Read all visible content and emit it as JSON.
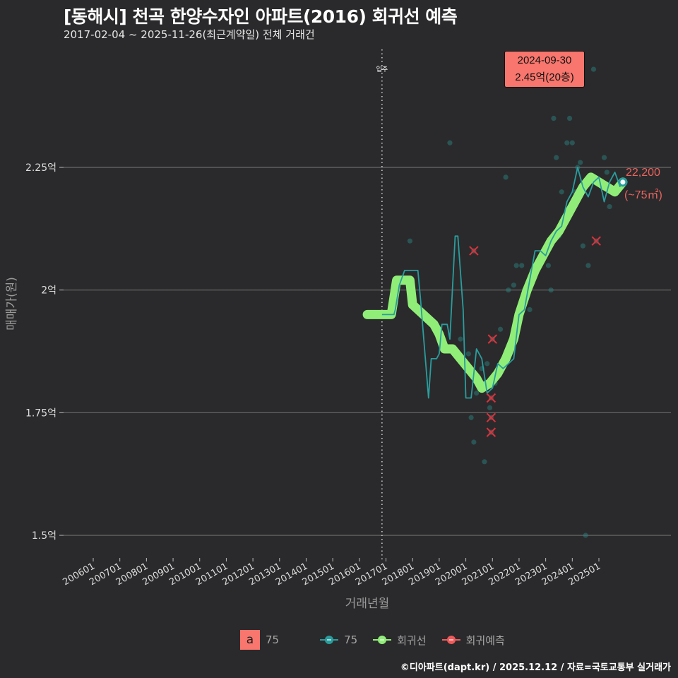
{
  "header": {
    "title": "[동해시] 천곡 한양수자인 아파트(2016) 회귀선 예측",
    "subtitle": "2017-02-04 ~ 2025-11-26(최근계약일) 전체 거래건"
  },
  "callout": {
    "date": "2024-09-30",
    "price": "2.45억(20층)"
  },
  "end_label": {
    "value": "22,200",
    "area": "(~75㎡)"
  },
  "movein_label": "입주",
  "legend": {
    "key_letter": "a",
    "key_label": "75",
    "items": [
      {
        "label": "75",
        "color": "#2a9d9d"
      },
      {
        "label": "회귀선",
        "color": "#90ee78"
      },
      {
        "label": "회귀예측",
        "color": "#f05a5a"
      }
    ]
  },
  "footer": "©디아파트(dapt.kr) / 2025.12.12 / 자료=국토교통부 실거래가",
  "colors": {
    "background": "#2a2a2c",
    "grid": "#6a6a6a",
    "series_75": "#2a9d9d",
    "regression": "#90ee78",
    "prediction": "#e0303a",
    "callout": "#f8766d"
  },
  "chart_data": {
    "type": "line",
    "title": "[동해시] 천곡 한양수자인 아파트(2016) 회귀선 예측",
    "subtitle": "2017-02-04 ~ 2025-11-26(최근계약일) 전체 거래건",
    "xlabel": "거래년월",
    "ylabel": "매매가(원)",
    "y_ticks": [
      {
        "v": 2.25,
        "label": "2.25억"
      },
      {
        "v": 2.0,
        "label": "2억"
      },
      {
        "v": 1.75,
        "label": "1.75억"
      },
      {
        "v": 1.5,
        "label": "1.5억"
      }
    ],
    "x_ticks": [
      "200601",
      "200701",
      "200801",
      "200901",
      "201001",
      "201101",
      "201201",
      "201301",
      "201401",
      "201501",
      "201601",
      "201701",
      "201801",
      "201901",
      "202001",
      "202101",
      "202201",
      "202301",
      "202401",
      "202501"
    ],
    "ylim": [
      1.46,
      2.71
    ],
    "xlim": [
      2005.3,
      2027.0
    ],
    "grid": true,
    "legend_position": "bottom",
    "movein_year": 2016.85,
    "series": [
      {
        "name": "75 (월별 평균)",
        "kind": "line",
        "points": [
          [
            2016.85,
            1.95
          ],
          [
            2017.3,
            1.95
          ],
          [
            2017.35,
            1.96
          ],
          [
            2017.5,
            2.01
          ],
          [
            2017.7,
            2.04
          ],
          [
            2018.2,
            2.04
          ],
          [
            2018.3,
            1.98
          ],
          [
            2018.6,
            1.78
          ],
          [
            2018.7,
            1.86
          ],
          [
            2018.9,
            1.86
          ],
          [
            2019.0,
            1.87
          ],
          [
            2019.1,
            1.93
          ],
          [
            2019.3,
            1.93
          ],
          [
            2019.4,
            1.9
          ],
          [
            2019.6,
            2.11
          ],
          [
            2019.7,
            2.11
          ],
          [
            2019.9,
            1.96
          ],
          [
            2020.0,
            1.78
          ],
          [
            2020.2,
            1.78
          ],
          [
            2020.4,
            1.88
          ],
          [
            2020.6,
            1.86
          ],
          [
            2020.8,
            1.79
          ],
          [
            2021.0,
            1.8
          ],
          [
            2021.2,
            1.85
          ],
          [
            2021.4,
            1.84
          ],
          [
            2021.6,
            1.85
          ],
          [
            2021.8,
            1.86
          ],
          [
            2022.0,
            1.95
          ],
          [
            2022.2,
            1.96
          ],
          [
            2022.4,
            2.02
          ],
          [
            2022.6,
            2.08
          ],
          [
            2022.8,
            2.08
          ],
          [
            2023.0,
            2.07
          ],
          [
            2023.2,
            2.1
          ],
          [
            2023.4,
            2.12
          ],
          [
            2023.6,
            2.13
          ],
          [
            2023.8,
            2.18
          ],
          [
            2024.0,
            2.2
          ],
          [
            2024.2,
            2.25
          ],
          [
            2024.4,
            2.21
          ],
          [
            2024.6,
            2.19
          ],
          [
            2024.8,
            2.22
          ],
          [
            2025.0,
            2.23
          ],
          [
            2025.2,
            2.18
          ],
          [
            2025.4,
            2.22
          ],
          [
            2025.6,
            2.24
          ],
          [
            2025.8,
            2.21
          ]
        ]
      },
      {
        "name": "회귀선",
        "kind": "line",
        "points": [
          [
            2016.3,
            1.95
          ],
          [
            2017.2,
            1.95
          ],
          [
            2017.4,
            2.02
          ],
          [
            2017.9,
            2.02
          ],
          [
            2018.0,
            1.97
          ],
          [
            2018.4,
            1.95
          ],
          [
            2018.8,
            1.93
          ],
          [
            2019.0,
            1.91
          ],
          [
            2019.2,
            1.88
          ],
          [
            2019.5,
            1.88
          ],
          [
            2019.8,
            1.86
          ],
          [
            2020.1,
            1.84
          ],
          [
            2020.4,
            1.82
          ],
          [
            2020.6,
            1.8
          ],
          [
            2020.9,
            1.81
          ],
          [
            2021.2,
            1.83
          ],
          [
            2021.5,
            1.86
          ],
          [
            2021.8,
            1.9
          ],
          [
            2022.0,
            1.95
          ],
          [
            2022.3,
            2.0
          ],
          [
            2022.6,
            2.04
          ],
          [
            2022.9,
            2.07
          ],
          [
            2023.2,
            2.1
          ],
          [
            2023.5,
            2.12
          ],
          [
            2023.8,
            2.15
          ],
          [
            2024.1,
            2.18
          ],
          [
            2024.4,
            2.21
          ],
          [
            2024.7,
            2.23
          ],
          [
            2025.0,
            2.22
          ],
          [
            2025.3,
            2.21
          ],
          [
            2025.6,
            2.2
          ],
          [
            2025.9,
            2.22
          ]
        ]
      },
      {
        "name": "회귀예측",
        "kind": "scatter-x",
        "points": [
          [
            2020.3,
            2.08
          ],
          [
            2021.0,
            1.9
          ],
          [
            2020.95,
            1.78
          ],
          [
            2020.95,
            1.74
          ],
          [
            2020.95,
            1.71
          ],
          [
            2024.9,
            2.1
          ]
        ]
      },
      {
        "name": "75 (개별 거래)",
        "kind": "scatter",
        "points": [
          [
            2017.9,
            2.1
          ],
          [
            2019.4,
            2.3
          ],
          [
            2019.8,
            1.9
          ],
          [
            2020.1,
            1.87
          ],
          [
            2020.2,
            1.74
          ],
          [
            2020.3,
            1.69
          ],
          [
            2020.4,
            1.79
          ],
          [
            2020.6,
            1.84
          ],
          [
            2020.7,
            1.65
          ],
          [
            2020.8,
            1.85
          ],
          [
            2020.9,
            1.76
          ],
          [
            2021.1,
            1.81
          ],
          [
            2021.3,
            1.92
          ],
          [
            2021.5,
            2.23
          ],
          [
            2021.6,
            2.0
          ],
          [
            2021.8,
            2.01
          ],
          [
            2021.9,
            2.05
          ],
          [
            2022.1,
            2.05
          ],
          [
            2022.2,
            2.0
          ],
          [
            2022.4,
            1.96
          ],
          [
            2022.5,
            2.02
          ],
          [
            2022.6,
            2.05
          ],
          [
            2022.9,
            2.08
          ],
          [
            2023.1,
            2.05
          ],
          [
            2023.2,
            2.0
          ],
          [
            2023.3,
            2.35
          ],
          [
            2023.4,
            2.27
          ],
          [
            2023.5,
            2.11
          ],
          [
            2023.6,
            2.2
          ],
          [
            2023.8,
            2.3
          ],
          [
            2023.9,
            2.35
          ],
          [
            2024.0,
            2.3
          ],
          [
            2024.1,
            2.2
          ],
          [
            2024.2,
            2.25
          ],
          [
            2024.3,
            2.26
          ],
          [
            2024.4,
            2.09
          ],
          [
            2024.6,
            2.05
          ],
          [
            2024.8,
            2.45
          ],
          [
            2025.2,
            2.27
          ],
          [
            2025.3,
            2.24
          ],
          [
            2025.4,
            2.17
          ],
          [
            2024.5,
            1.5
          ]
        ]
      }
    ],
    "annotations": [
      {
        "text": "2024-09-30 / 2.45억(20층)",
        "x": 2024.75,
        "y": 2.45
      },
      {
        "text": "22,200 (~75㎡)",
        "x": 2025.9,
        "y": 2.22
      },
      {
        "text": "입주",
        "x": 2016.85
      }
    ]
  }
}
